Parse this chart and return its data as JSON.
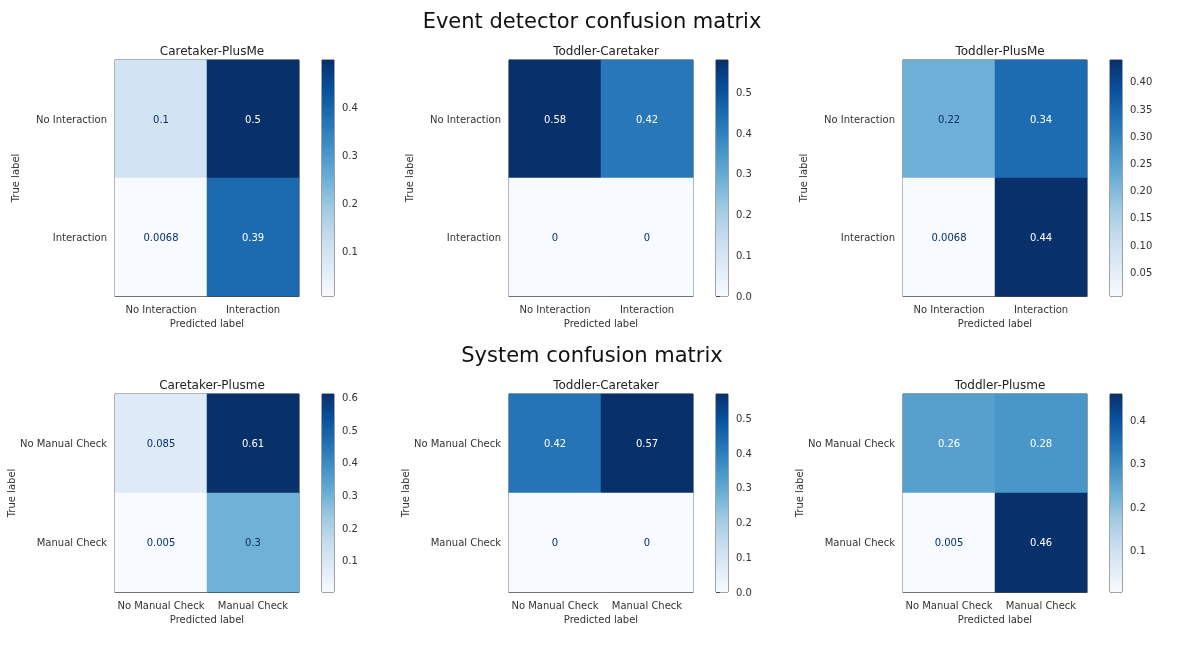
{
  "chart_data": [
    {
      "type": "heatmap",
      "title": "Caretaker-PlusMe",
      "annotations": [
        "Event detector confusion matrix"
      ],
      "xlabel": "Predicted label",
      "ylabel": "True label",
      "categories": [
        "No Interaction",
        "Interaction"
      ],
      "y_categories": [
        "No Interaction",
        "Interaction"
      ],
      "cells": [
        [
          0.1,
          0.5
        ],
        [
          0.0068,
          0.39
        ]
      ],
      "clim": [
        0.0068,
        0.5
      ],
      "cticks": [
        0.1,
        0.2,
        0.3,
        0.4
      ],
      "data_labels": true
    },
    {
      "type": "heatmap",
      "title": "Toddler-Caretaker",
      "xlabel": "Predicted label",
      "ylabel": "True label",
      "categories": [
        "No Interaction",
        "Interaction"
      ],
      "y_categories": [
        "No Interaction",
        "Interaction"
      ],
      "cells": [
        [
          0.58,
          0.42
        ],
        [
          0,
          0
        ]
      ],
      "clim": [
        0,
        0.58
      ],
      "cticks": [
        {
          "value": 0,
          "label": "0.0"
        },
        0.1,
        0.2,
        0.3,
        0.4,
        0.5
      ],
      "data_labels": true
    },
    {
      "type": "heatmap",
      "title": "Toddler-PlusMe",
      "xlabel": "Predicted label",
      "ylabel": "True label",
      "categories": [
        "No Interaction",
        "Interaction"
      ],
      "y_categories": [
        "No Interaction",
        "Interaction"
      ],
      "cells": [
        [
          0.22,
          0.34
        ],
        [
          0.0068,
          0.44
        ]
      ],
      "clim": [
        0.0068,
        0.44
      ],
      "cticks": [
        0.05,
        {
          "value": 0.1,
          "label": "0.10"
        },
        0.15,
        {
          "value": 0.2,
          "label": "0.20"
        },
        0.25,
        {
          "value": 0.3,
          "label": "0.30"
        },
        0.35,
        {
          "value": 0.4,
          "label": "0.40"
        }
      ],
      "data_labels": true
    },
    {
      "type": "heatmap",
      "title": "Caretaker-Plusme",
      "annotations": [
        "System confusion matrix"
      ],
      "xlabel": "Predicted label",
      "ylabel": "True label",
      "categories": [
        "No Manual Check",
        "Manual Check"
      ],
      "y_categories": [
        "No Manual Check",
        "Manual Check"
      ],
      "cells": [
        [
          0.085,
          0.61
        ],
        [
          0.005,
          0.3
        ]
      ],
      "clim": [
        0.005,
        0.61
      ],
      "cticks": [
        0.1,
        0.2,
        0.3,
        0.4,
        0.5,
        0.6
      ],
      "data_labels": true
    },
    {
      "type": "heatmap",
      "title": "Toddler-Caretaker",
      "xlabel": "Predicted label",
      "ylabel": "True label",
      "categories": [
        "No Manual Check",
        "Manual Check"
      ],
      "y_categories": [
        "No Manual Check",
        "Manual Check"
      ],
      "cells": [
        [
          0.42,
          0.57
        ],
        [
          0,
          0
        ]
      ],
      "clim": [
        0,
        0.57
      ],
      "cticks": [
        {
          "value": 0,
          "label": "0.0"
        },
        0.1,
        0.2,
        0.3,
        0.4,
        0.5
      ],
      "data_labels": true
    },
    {
      "type": "heatmap",
      "title": "Toddler-Plusme",
      "xlabel": "Predicted label",
      "ylabel": "True label",
      "categories": [
        "No Manual Check",
        "Manual Check"
      ],
      "y_categories": [
        "No Manual Check",
        "Manual Check"
      ],
      "cells": [
        [
          0.26,
          0.28
        ],
        [
          0.005,
          0.46
        ]
      ],
      "clim": [
        0.005,
        0.46
      ],
      "cticks": [
        0.1,
        0.2,
        0.3,
        0.4
      ],
      "data_labels": true
    }
  ]
}
